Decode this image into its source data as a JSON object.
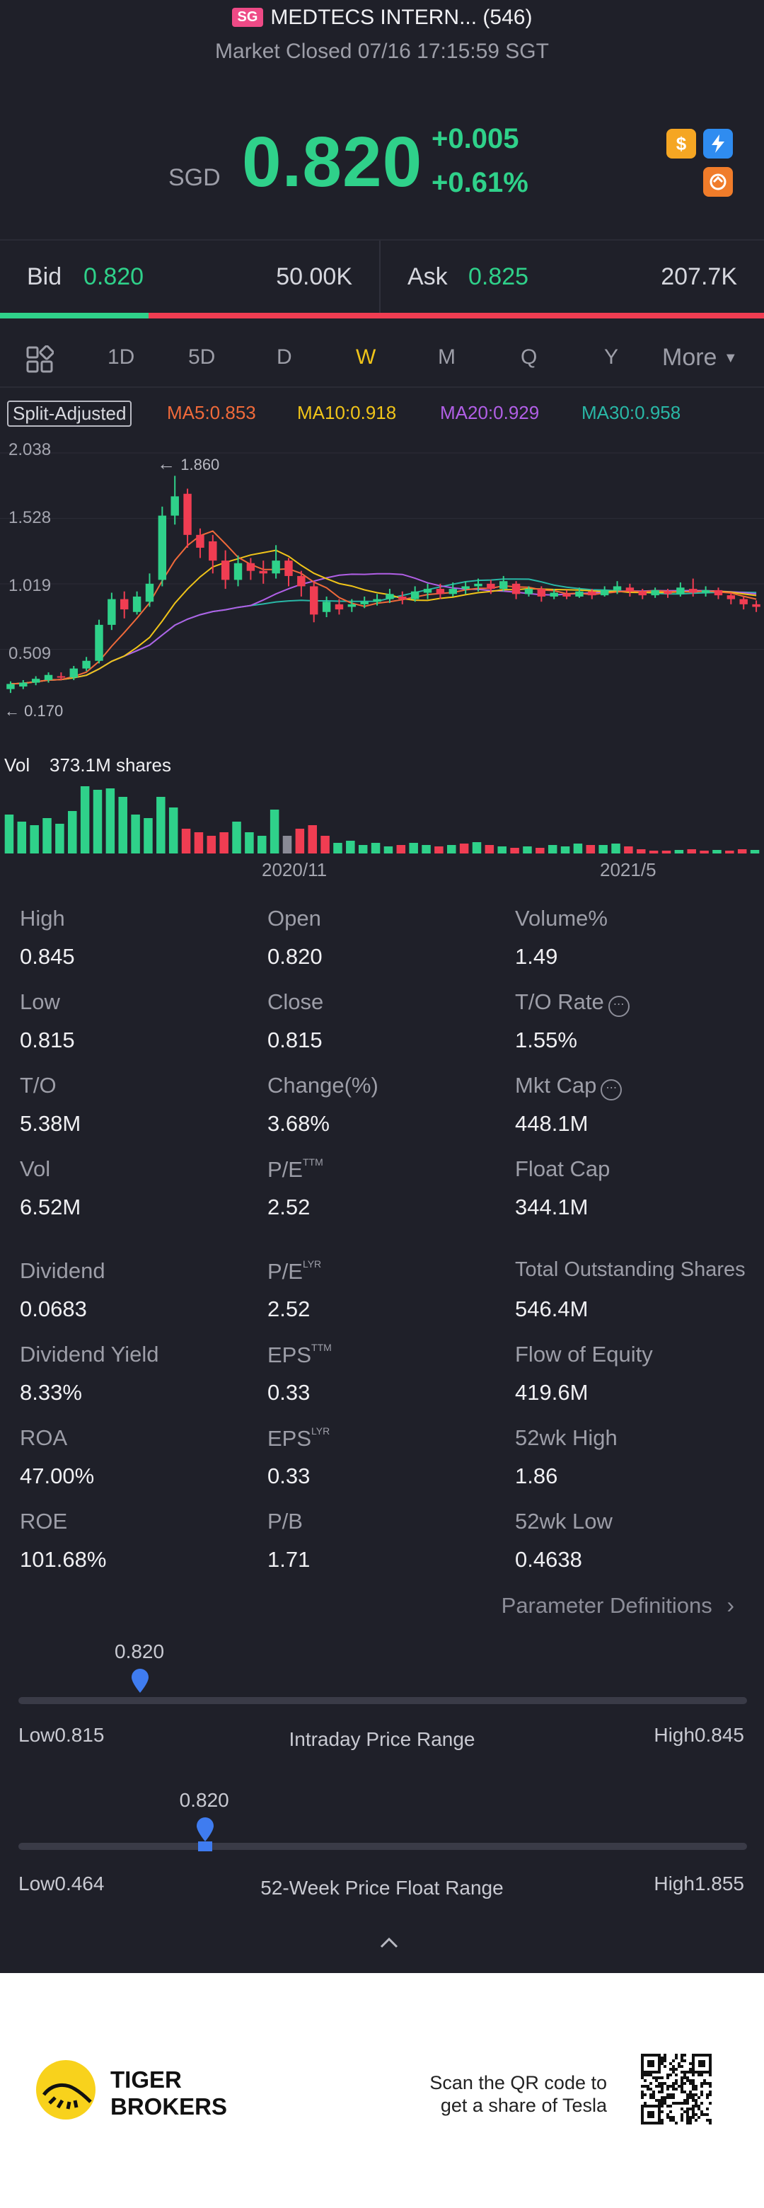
{
  "header": {
    "market_tag": "SG",
    "title": "MEDTECS INTERN... (546)",
    "status": "Market Closed 07/16 17:15:59 SGT"
  },
  "quote": {
    "currency": "SGD",
    "price": "0.820",
    "change": "+0.005",
    "change_pct": "+0.61%",
    "icons": [
      "dollar-icon",
      "flash-icon",
      "swap-icon"
    ]
  },
  "bidask": {
    "bid_label": "Bid",
    "bid_price": "0.820",
    "bid_size": "50.00K",
    "ask_label": "Ask",
    "ask_price": "0.825",
    "ask_size": "207.7K",
    "bid_ratio": 0.194
  },
  "tabs": [
    "1D",
    "5D",
    "D",
    "W",
    "M",
    "Q",
    "Y",
    "More"
  ],
  "active_tab": "W",
  "ma": {
    "split_label": "Split-Adjusted",
    "ma5": "MA5:0.853",
    "ma10": "MA10:0.918",
    "ma20": "MA20:0.929",
    "ma30": "MA30:0.958"
  },
  "colors": {
    "up": "#2fd18a",
    "down": "#f03d52",
    "ma5": "#f06a3a",
    "ma10": "#f0c419",
    "ma20": "#b15fe6",
    "ma30": "#29b7a6",
    "accent_blue": "#3f7cf0"
  },
  "chart_data": {
    "type": "candlestick",
    "y_ticks": [
      "2.038",
      "1.528",
      "1.019",
      "0.509"
    ],
    "ylim": [
      0.0,
      2.038
    ],
    "max_label": "1.860",
    "min_label": "0.170",
    "x_ticks": [
      "2020/11",
      "2021/5"
    ],
    "candles": [
      [
        0.2,
        0.24,
        0.17,
        0.26
      ],
      [
        0.22,
        0.25,
        0.2,
        0.27
      ],
      [
        0.25,
        0.28,
        0.23,
        0.3
      ],
      [
        0.27,
        0.31,
        0.25,
        0.33
      ],
      [
        0.3,
        0.29,
        0.27,
        0.33
      ],
      [
        0.29,
        0.36,
        0.27,
        0.38
      ],
      [
        0.36,
        0.42,
        0.34,
        0.45
      ],
      [
        0.42,
        0.7,
        0.4,
        0.74
      ],
      [
        0.7,
        0.9,
        0.66,
        0.95
      ],
      [
        0.9,
        0.82,
        0.75,
        0.96
      ],
      [
        0.8,
        0.92,
        0.78,
        0.96
      ],
      [
        0.88,
        1.02,
        0.84,
        1.1
      ],
      [
        1.05,
        1.55,
        1.0,
        1.62
      ],
      [
        1.55,
        1.7,
        1.48,
        1.86
      ],
      [
        1.72,
        1.4,
        1.3,
        1.76
      ],
      [
        1.4,
        1.3,
        1.22,
        1.45
      ],
      [
        1.35,
        1.2,
        1.1,
        1.4
      ],
      [
        1.2,
        1.05,
        0.98,
        1.28
      ],
      [
        1.05,
        1.18,
        1.0,
        1.24
      ],
      [
        1.18,
        1.12,
        1.05,
        1.22
      ],
      [
        1.12,
        1.1,
        1.02,
        1.2
      ],
      [
        1.1,
        1.2,
        1.06,
        1.32
      ],
      [
        1.2,
        1.08,
        1.0,
        1.22
      ],
      [
        1.08,
        1.0,
        0.92,
        1.12
      ],
      [
        1.0,
        0.78,
        0.72,
        1.04
      ],
      [
        0.8,
        0.88,
        0.76,
        0.92
      ],
      [
        0.86,
        0.82,
        0.78,
        0.9
      ],
      [
        0.84,
        0.86,
        0.8,
        0.9
      ],
      [
        0.86,
        0.88,
        0.83,
        0.92
      ],
      [
        0.88,
        0.9,
        0.85,
        0.94
      ],
      [
        0.9,
        0.94,
        0.87,
        0.98
      ],
      [
        0.92,
        0.9,
        0.86,
        0.96
      ],
      [
        0.9,
        0.96,
        0.88,
        1.0
      ],
      [
        0.95,
        0.98,
        0.9,
        1.02
      ],
      [
        0.98,
        0.94,
        0.9,
        1.02
      ],
      [
        0.94,
        0.98,
        0.92,
        1.03
      ],
      [
        0.98,
        1.0,
        0.94,
        1.04
      ],
      [
        1.0,
        1.02,
        0.96,
        1.06
      ],
      [
        1.02,
        0.98,
        0.94,
        1.05
      ],
      [
        0.98,
        1.04,
        0.96,
        1.08
      ],
      [
        1.02,
        0.94,
        0.9,
        1.04
      ],
      [
        0.94,
        0.98,
        0.92,
        1.0
      ],
      [
        0.98,
        0.92,
        0.88,
        1.0
      ],
      [
        0.92,
        0.95,
        0.9,
        0.98
      ],
      [
        0.94,
        0.92,
        0.9,
        0.97
      ],
      [
        0.92,
        0.96,
        0.91,
        0.99
      ],
      [
        0.96,
        0.93,
        0.9,
        0.98
      ],
      [
        0.93,
        0.97,
        0.92,
        1.0
      ],
      [
        0.97,
        1.0,
        0.94,
        1.04
      ],
      [
        0.99,
        0.96,
        0.92,
        1.02
      ],
      [
        0.96,
        0.93,
        0.9,
        0.98
      ],
      [
        0.93,
        0.97,
        0.91,
        0.99
      ],
      [
        0.96,
        0.94,
        0.91,
        0.98
      ],
      [
        0.94,
        0.99,
        0.92,
        1.03
      ],
      [
        0.98,
        0.95,
        0.92,
        1.06
      ],
      [
        0.95,
        0.97,
        0.92,
        1.0
      ],
      [
        0.97,
        0.93,
        0.9,
        0.99
      ],
      [
        0.93,
        0.9,
        0.86,
        0.95
      ],
      [
        0.9,
        0.86,
        0.82,
        0.92
      ],
      [
        0.86,
        0.84,
        0.8,
        0.89
      ]
    ],
    "volume_label": "Vol",
    "volume_value": "373.1M shares",
    "volumes": [
      [
        0.55,
        "up"
      ],
      [
        0.45,
        "up"
      ],
      [
        0.4,
        "up"
      ],
      [
        0.5,
        "up"
      ],
      [
        0.42,
        "up"
      ],
      [
        0.6,
        "up"
      ],
      [
        0.95,
        "up"
      ],
      [
        0.9,
        "up"
      ],
      [
        0.92,
        "up"
      ],
      [
        0.8,
        "up"
      ],
      [
        0.55,
        "up"
      ],
      [
        0.5,
        "up"
      ],
      [
        0.8,
        "up"
      ],
      [
        0.65,
        "up"
      ],
      [
        0.35,
        "down"
      ],
      [
        0.3,
        "down"
      ],
      [
        0.25,
        "down"
      ],
      [
        0.3,
        "down"
      ],
      [
        0.45,
        "up"
      ],
      [
        0.3,
        "up"
      ],
      [
        0.25,
        "up"
      ],
      [
        0.62,
        "up"
      ],
      [
        0.25,
        "gray"
      ],
      [
        0.35,
        "down"
      ],
      [
        0.4,
        "down"
      ],
      [
        0.25,
        "down"
      ],
      [
        0.15,
        "up"
      ],
      [
        0.18,
        "up"
      ],
      [
        0.12,
        "up"
      ],
      [
        0.15,
        "up"
      ],
      [
        0.1,
        "up"
      ],
      [
        0.12,
        "down"
      ],
      [
        0.15,
        "up"
      ],
      [
        0.12,
        "up"
      ],
      [
        0.1,
        "down"
      ],
      [
        0.12,
        "up"
      ],
      [
        0.14,
        "down"
      ],
      [
        0.16,
        "up"
      ],
      [
        0.12,
        "down"
      ],
      [
        0.1,
        "up"
      ],
      [
        0.08,
        "down"
      ],
      [
        0.1,
        "up"
      ],
      [
        0.08,
        "down"
      ],
      [
        0.12,
        "up"
      ],
      [
        0.1,
        "up"
      ],
      [
        0.14,
        "up"
      ],
      [
        0.12,
        "down"
      ],
      [
        0.12,
        "up"
      ],
      [
        0.14,
        "up"
      ],
      [
        0.1,
        "down"
      ],
      [
        0.06,
        "down"
      ],
      [
        0.04,
        "down"
      ],
      [
        0.04,
        "down"
      ],
      [
        0.05,
        "up"
      ],
      [
        0.06,
        "down"
      ],
      [
        0.04,
        "down"
      ],
      [
        0.05,
        "up"
      ],
      [
        0.04,
        "down"
      ],
      [
        0.06,
        "down"
      ],
      [
        0.05,
        "up"
      ]
    ]
  },
  "stats": [
    [
      {
        "label": "High",
        "value": "0.845"
      },
      {
        "label": "Open",
        "value": "0.820"
      },
      {
        "label": "Volume%",
        "value": "1.49"
      }
    ],
    [
      {
        "label": "Low",
        "value": "0.815"
      },
      {
        "label": "Close",
        "value": "0.815"
      },
      {
        "label": "T/O Rate",
        "value": "1.55%"
      }
    ],
    [
      {
        "label": "T/O",
        "value": "5.38M"
      },
      {
        "label": "Change(%)",
        "value": "3.68%"
      },
      {
        "label": "Mkt Cap",
        "value": "448.1M"
      }
    ],
    [
      {
        "label": "Vol",
        "value": "6.52M"
      },
      {
        "label": "P/E",
        "sup": "TTM",
        "value": "2.52"
      },
      {
        "label": "Float Cap",
        "value": "344.1M"
      }
    ],
    [
      {
        "label": "Dividend",
        "value": "0.0683"
      },
      {
        "label": "P/E",
        "sup": "LYR",
        "value": "2.52"
      },
      {
        "label": "Total Outstanding Shares",
        "value": "546.4M"
      }
    ],
    [
      {
        "label": "Dividend Yield",
        "value": "8.33%"
      },
      {
        "label": "EPS",
        "sup": "TTM",
        "value": "0.33"
      },
      {
        "label": "Flow of Equity",
        "value": "419.6M"
      }
    ],
    [
      {
        "label": "ROA",
        "value": "47.00%"
      },
      {
        "label": "EPS",
        "sup": "LYR",
        "value": "0.33"
      },
      {
        "label": "52wk High",
        "value": "1.86"
      }
    ],
    [
      {
        "label": "ROE",
        "value": "101.68%"
      },
      {
        "label": "P/B",
        "value": "1.71"
      },
      {
        "label": "52wk Low",
        "value": "0.4638"
      }
    ]
  ],
  "param_link": "Parameter Definitions",
  "intraday": {
    "current": "0.820",
    "low": "Low0.815",
    "high": "High0.845",
    "title": "Intraday Price Range",
    "position": 0.167
  },
  "week52": {
    "current": "0.820",
    "low": "Low0.464",
    "high": "High1.855",
    "title": "52-Week Price Float Range",
    "position": 0.256
  },
  "footer": {
    "brand_line1": "TIGER",
    "brand_line2": "BROKERS",
    "scan_line1": "Scan the QR code to",
    "scan_line2": "get a share of Tesla"
  }
}
